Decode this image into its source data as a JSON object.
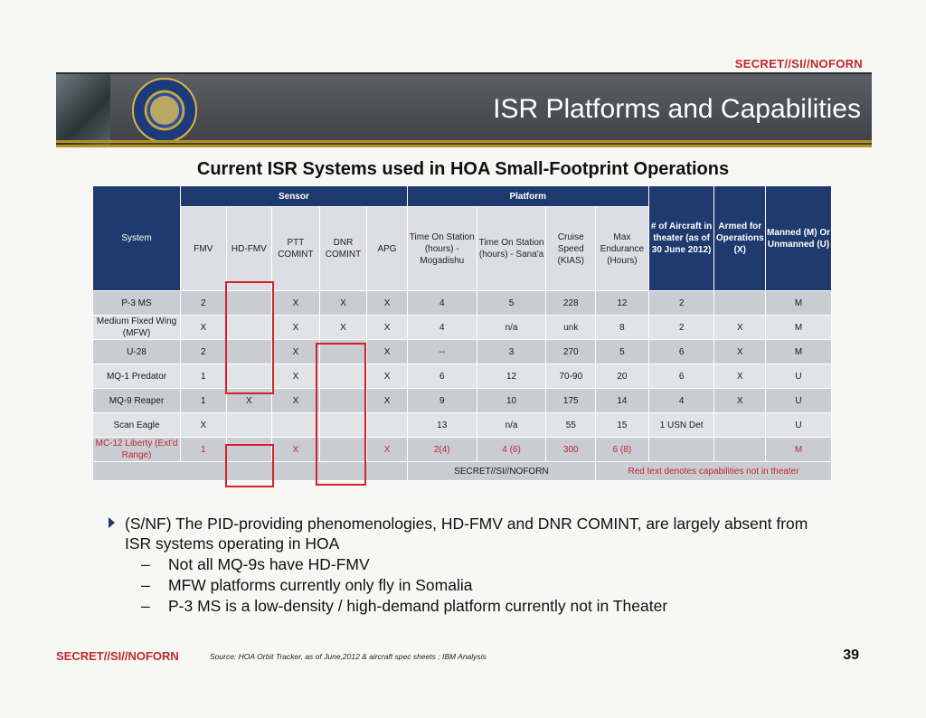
{
  "classification_top": "SECRET//SI//NOFORN",
  "title": "ISR Platforms and Capabilities",
  "subtitle": "Current ISR Systems used in HOA Small-Footprint Operations",
  "table": {
    "system_header": "System",
    "sensor_group": "Sensor",
    "platform_group": "Platform",
    "sensor_columns": [
      "FMV",
      "HD-FMV",
      "PTT COMINT",
      "DNR COMINT",
      "APG"
    ],
    "platform_columns": [
      "Time On Station (hours) - Mogadishu",
      "Time On Station (hours) - Sana'a",
      "Cruise Speed (KIAS)",
      "Max Endurance (Hours)"
    ],
    "aircraft_header": "# of Aircraft in theater (as of 30 June 2012)",
    "armed_header": "Armed for Operations (X)",
    "manned_header": "Manned (M) Or Unmanned (U)",
    "rows": [
      {
        "system": "P-3 MS",
        "c": [
          "2",
          "",
          "X",
          "X",
          "X",
          "4",
          "5",
          "228",
          "12",
          "2",
          "",
          "M"
        ]
      },
      {
        "system": "Medium Fixed Wing (MFW)",
        "c": [
          "X",
          "",
          "X",
          "X",
          "X",
          "4",
          "n/a",
          "unk",
          "8",
          "2",
          "X",
          "M"
        ]
      },
      {
        "system": "U-28",
        "c": [
          "2",
          "",
          "X",
          "",
          "X",
          "--",
          "3",
          "270",
          "5",
          "6",
          "X",
          "M"
        ]
      },
      {
        "system": "MQ-1 Predator",
        "c": [
          "1",
          "",
          "X",
          "",
          "X",
          "6",
          "12",
          "70-90",
          "20",
          "6",
          "X",
          "U"
        ]
      },
      {
        "system": "MQ-9 Reaper",
        "c": [
          "1",
          "X",
          "X",
          "",
          "X",
          "9",
          "10",
          "175",
          "14",
          "4",
          "X",
          "U"
        ]
      },
      {
        "system": "Scan Eagle",
        "c": [
          "X",
          "",
          "",
          "",
          "",
          "13",
          "n/a",
          "55",
          "15",
          "1 USN Det",
          "",
          "U"
        ]
      },
      {
        "system": "MC-12 Liberty (Ext'd Range)",
        "c": [
          "1",
          "",
          "X",
          "",
          "X",
          "2(4)",
          "4 (6)",
          "300",
          "6 (8)",
          "",
          "",
          "M"
        ]
      }
    ],
    "footer_classification": "SECRET//SI//NOFORN",
    "footer_note": "Red text denotes capabilities not in theater"
  },
  "bullet": "(S/NF) The PID-providing phenomenologies, HD-FMV and DNR COMINT, are largely absent from ISR systems operating in HOA",
  "sub_bullets": [
    "Not all MQ-9s have HD-FMV",
    "MFW platforms currently only fly in Somalia",
    "P-3 MS is a low-density / high-demand platform currently not in Theater"
  ],
  "classification_bottom": "SECRET//SI//NOFORN",
  "source": "Source: HOA Orbit Tracker, as of June,2012 & aircraft spec sheets ; IBM Analysis",
  "page_number": "39",
  "colors": {
    "classification_red": "#c0282d",
    "table_header_blue": "#1f3a6e",
    "banner_gold": "#b8911f"
  }
}
